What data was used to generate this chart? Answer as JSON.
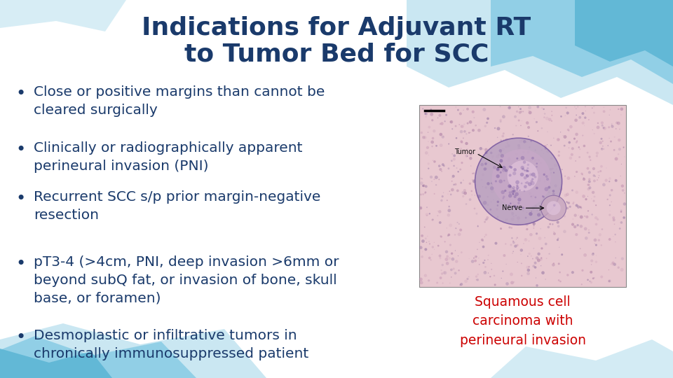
{
  "title_line1": "Indications for Adjuvant RT",
  "title_line2": "to Tumor Bed for SCC",
  "title_color": "#1a3a6b",
  "title_fontsize": 26,
  "bullet_color": "#1a3a6b",
  "bullet_fontsize": 14.5,
  "bullets": [
    "Close or positive margins than cannot be\ncleared surgically",
    "Clinically or radiographically apparent\nperineural invasion (PNI)",
    "Recurrent SCC s/p prior margin-negative\nresection",
    "pT3-4 (>4cm, PNI, deep invasion >6mm or\nbeyond subQ fat, or invasion of bone, skull\nbase, or foramen)",
    "Desmoplastic or infiltrative tumors in\nchronically immunosuppressed patient"
  ],
  "caption": "Squamous cell\ncarcinoma with\nperineural invasion",
  "caption_color": "#cc0000",
  "caption_fontsize": 13.5,
  "bg_color": "#ffffff",
  "wave_color1": "#7ec8e3",
  "wave_color2": "#5ab4d4",
  "wave_color3": "#a8d8ea"
}
